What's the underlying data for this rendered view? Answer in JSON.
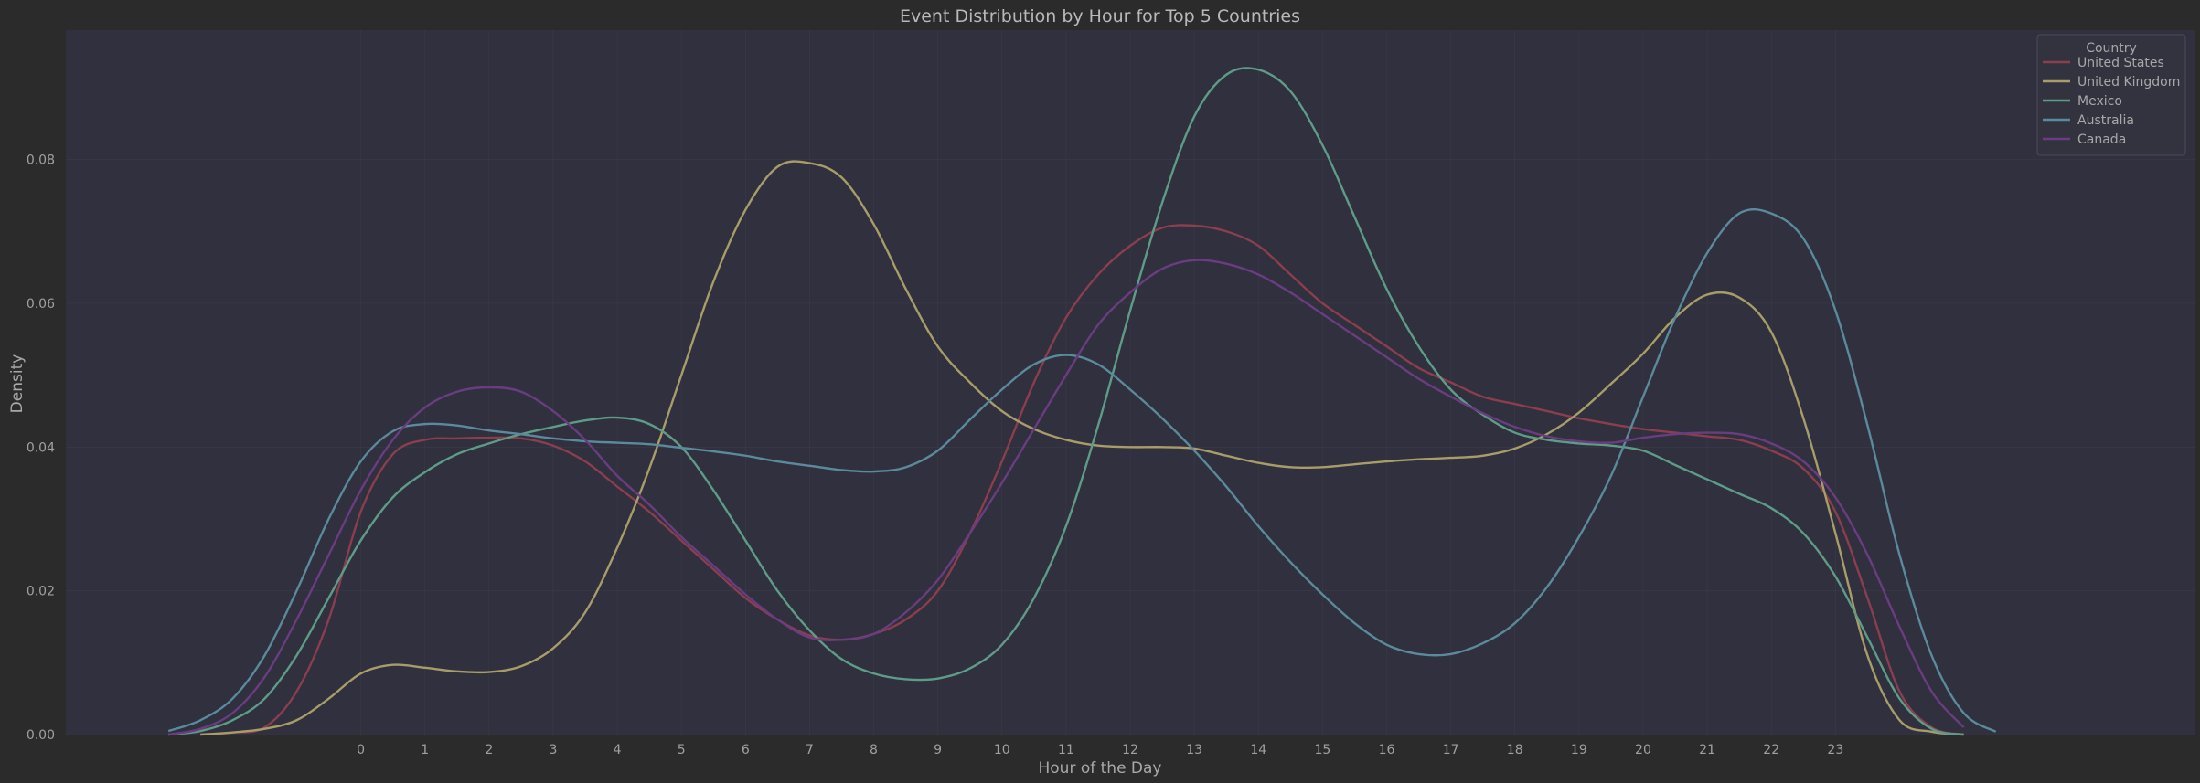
{
  "chart_data": {
    "type": "line",
    "title": "Event Distribution by Hour for Top 5 Countries",
    "xlabel": "Hour of the Day",
    "ylabel": "Density",
    "x_ticks": [
      "0",
      "1",
      "2",
      "3",
      "4",
      "5",
      "6",
      "7",
      "8",
      "9",
      "10",
      "11",
      "12",
      "13",
      "14",
      "15",
      "16",
      "17",
      "18",
      "19",
      "20",
      "21",
      "22",
      "23"
    ],
    "y_ticks": [
      "0.00",
      "0.02",
      "0.04",
      "0.06",
      "0.08"
    ],
    "xlim": [
      -4.6,
      28.6
    ],
    "ylim": [
      0,
      0.098
    ],
    "grid": true,
    "legend_title": "Country",
    "legend_position": "top-right",
    "colors": {
      "page_background": "#2b2b2b",
      "plot_background": "#30303e",
      "grid": "#3a3a48",
      "legend_background": "#333340",
      "legend_border": "#4a4a5a"
    },
    "series": [
      {
        "name": "United States",
        "color": "#8a3e4e",
        "x": [
          -2.5,
          -2,
          -1.5,
          -1,
          -0.5,
          0,
          0.5,
          1,
          1.5,
          2,
          2.5,
          3,
          3.5,
          4,
          4.5,
          5,
          5.5,
          6,
          6.5,
          7,
          7.5,
          8,
          8.5,
          9,
          9.5,
          10,
          10.5,
          11,
          11.5,
          12,
          12.5,
          13,
          13.5,
          14,
          14.5,
          15,
          15.5,
          16,
          16.5,
          17,
          17.5,
          18,
          18.5,
          19,
          19.5,
          20,
          20.5,
          21,
          21.5,
          22,
          22.5,
          23,
          23.5,
          24,
          24.5,
          25
        ],
        "values": [
          0,
          0.0003,
          0.001,
          0.006,
          0.016,
          0.031,
          0.039,
          0.041,
          0.0412,
          0.0413,
          0.0412,
          0.0402,
          0.038,
          0.0345,
          0.031,
          0.027,
          0.023,
          0.019,
          0.016,
          0.0138,
          0.0132,
          0.014,
          0.016,
          0.02,
          0.028,
          0.038,
          0.049,
          0.058,
          0.064,
          0.068,
          0.0705,
          0.0708,
          0.07,
          0.068,
          0.064,
          0.06,
          0.057,
          0.054,
          0.051,
          0.049,
          0.047,
          0.046,
          0.045,
          0.044,
          0.0432,
          0.0425,
          0.042,
          0.0415,
          0.041,
          0.0395,
          0.037,
          0.031,
          0.019,
          0.006,
          0.001,
          0
        ]
      },
      {
        "name": "United Kingdom",
        "color": "#a89c68",
        "x": [
          -2.5,
          -2,
          -1.5,
          -1,
          -0.5,
          0,
          0.5,
          1,
          1.5,
          2,
          2.5,
          3,
          3.5,
          4,
          4.5,
          5,
          5.5,
          6,
          6.5,
          7,
          7.5,
          8,
          8.5,
          9,
          9.5,
          10,
          10.5,
          11,
          11.5,
          12,
          12.5,
          13,
          13.5,
          14,
          14.5,
          15,
          15.5,
          16,
          16.5,
          17,
          17.5,
          18,
          18.5,
          19,
          19.5,
          20,
          20.5,
          21,
          21.5,
          22,
          22.5,
          23,
          23.5,
          24,
          24.5,
          25
        ],
        "values": [
          0,
          0.0003,
          0.0008,
          0.002,
          0.005,
          0.0085,
          0.0097,
          0.0093,
          0.0088,
          0.0087,
          0.0095,
          0.012,
          0.017,
          0.026,
          0.037,
          0.05,
          0.063,
          0.073,
          0.079,
          0.0795,
          0.0775,
          0.071,
          0.062,
          0.054,
          0.049,
          0.045,
          0.0425,
          0.041,
          0.0402,
          0.04,
          0.04,
          0.0398,
          0.0388,
          0.0378,
          0.0372,
          0.0372,
          0.0376,
          0.038,
          0.0383,
          0.0385,
          0.0388,
          0.0398,
          0.0418,
          0.0448,
          0.0488,
          0.053,
          0.058,
          0.0612,
          0.0608,
          0.056,
          0.044,
          0.028,
          0.011,
          0.002,
          0.0004,
          0
        ]
      },
      {
        "name": "Mexico",
        "color": "#5f9c88",
        "x": [
          -3,
          -2.5,
          -2,
          -1.5,
          -1,
          -0.5,
          0,
          0.5,
          1,
          1.5,
          2,
          2.5,
          3,
          3.5,
          4,
          4.5,
          5,
          5.5,
          6,
          6.5,
          7,
          7.5,
          8,
          8.5,
          9,
          9.5,
          10,
          10.5,
          11,
          11.5,
          12,
          12.5,
          13,
          13.5,
          14,
          14.5,
          15,
          15.5,
          16,
          16.5,
          17,
          17.5,
          18,
          18.5,
          19,
          19.5,
          20,
          20.5,
          21,
          21.5,
          22,
          22.5,
          23,
          23.5,
          24,
          24.5,
          25
        ],
        "values": [
          0,
          0.0005,
          0.002,
          0.005,
          0.011,
          0.019,
          0.027,
          0.033,
          0.0365,
          0.039,
          0.0405,
          0.0418,
          0.0428,
          0.0437,
          0.0441,
          0.0432,
          0.04,
          0.034,
          0.027,
          0.02,
          0.0145,
          0.0105,
          0.0085,
          0.0077,
          0.0078,
          0.0092,
          0.0125,
          0.019,
          0.029,
          0.043,
          0.059,
          0.074,
          0.086,
          0.0918,
          0.0925,
          0.0895,
          0.082,
          0.072,
          0.062,
          0.054,
          0.048,
          0.0445,
          0.042,
          0.041,
          0.0405,
          0.0402,
          0.0395,
          0.0375,
          0.0355,
          0.0335,
          0.0315,
          0.028,
          0.022,
          0.0135,
          0.005,
          0.0008,
          0
        ]
      },
      {
        "name": "Australia",
        "color": "#5a8a9c",
        "x": [
          -3,
          -2.5,
          -2,
          -1.5,
          -1,
          -0.5,
          0,
          0.5,
          1,
          1.5,
          2,
          2.5,
          3,
          3.5,
          4,
          4.5,
          5,
          5.5,
          6,
          6.5,
          7,
          7.5,
          8,
          8.5,
          9,
          9.5,
          10,
          10.5,
          11,
          11.5,
          12,
          12.5,
          13,
          13.5,
          14,
          14.5,
          15,
          15.5,
          16,
          16.5,
          17,
          17.5,
          18,
          18.5,
          19,
          19.5,
          20,
          20.5,
          21,
          21.5,
          22,
          22.5,
          23,
          23.5,
          24,
          24.5,
          25,
          25.5
        ],
        "values": [
          0.0005,
          0.002,
          0.005,
          0.011,
          0.02,
          0.03,
          0.038,
          0.0422,
          0.0432,
          0.043,
          0.0423,
          0.0418,
          0.0412,
          0.0408,
          0.0406,
          0.0404,
          0.0399,
          0.0394,
          0.0388,
          0.038,
          0.0374,
          0.0368,
          0.0366,
          0.0372,
          0.0395,
          0.0438,
          0.048,
          0.0515,
          0.0528,
          0.0515,
          0.048,
          0.044,
          0.0395,
          0.0345,
          0.029,
          0.024,
          0.0195,
          0.0155,
          0.0125,
          0.0112,
          0.0112,
          0.0127,
          0.0155,
          0.0205,
          0.0275,
          0.036,
          0.047,
          0.058,
          0.067,
          0.0725,
          0.0725,
          0.069,
          0.059,
          0.043,
          0.025,
          0.011,
          0.003,
          0.0004
        ]
      },
      {
        "name": "Canada",
        "color": "#6a3d80",
        "x": [
          -3,
          -2.5,
          -2,
          -1.5,
          -1,
          -0.5,
          0,
          0.5,
          1,
          1.5,
          2,
          2.5,
          3,
          3.5,
          4,
          4.5,
          5,
          5.5,
          6,
          6.5,
          7,
          7.5,
          8,
          8.5,
          9,
          9.5,
          10,
          10.5,
          11,
          11.5,
          12,
          12.5,
          13,
          13.5,
          14,
          14.5,
          15,
          15.5,
          16,
          16.5,
          17,
          17.5,
          18,
          18.5,
          19,
          19.5,
          20,
          20.5,
          21,
          21.5,
          22,
          22.5,
          23,
          23.5,
          24,
          24.5,
          25
        ],
        "values": [
          0,
          0.0008,
          0.003,
          0.008,
          0.016,
          0.025,
          0.034,
          0.041,
          0.0455,
          0.0477,
          0.0483,
          0.0477,
          0.045,
          0.041,
          0.036,
          0.032,
          0.0275,
          0.0235,
          0.0195,
          0.016,
          0.0135,
          0.0132,
          0.014,
          0.017,
          0.0215,
          0.028,
          0.035,
          0.0425,
          0.05,
          0.057,
          0.0615,
          0.0648,
          0.066,
          0.0655,
          0.064,
          0.0615,
          0.0585,
          0.0555,
          0.0525,
          0.0495,
          0.047,
          0.0447,
          0.0428,
          0.0415,
          0.0408,
          0.0406,
          0.0413,
          0.0418,
          0.042,
          0.0418,
          0.0405,
          0.038,
          0.033,
          0.025,
          0.015,
          0.006,
          0.001
        ]
      }
    ]
  }
}
